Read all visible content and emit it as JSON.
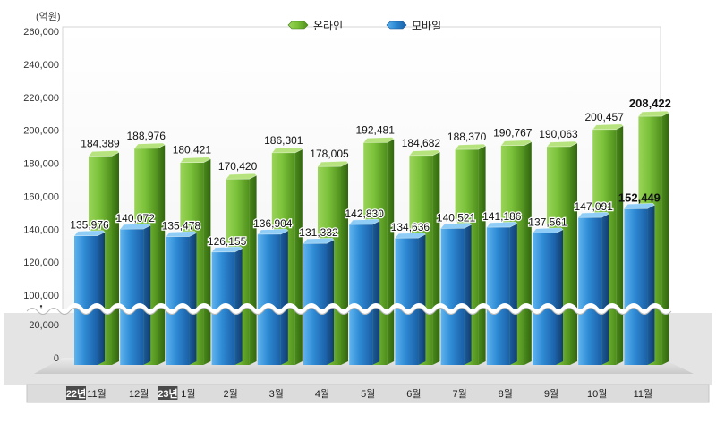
{
  "chart_data": {
    "type": "bar",
    "unit_label": "(억원)",
    "legend": [
      {
        "name": "온라인",
        "color": "#7fc33a"
      },
      {
        "name": "모바일",
        "color": "#2f8fd6"
      }
    ],
    "year_tags": [
      "22년",
      "23년"
    ],
    "categories": [
      "11월",
      "12월",
      "1월",
      "2월",
      "3월",
      "4월",
      "5월",
      "6월",
      "7월",
      "8월",
      "9월",
      "10월",
      "11월"
    ],
    "series": [
      {
        "name": "온라인",
        "values": [
          184389,
          188976,
          180421,
          170420,
          186301,
          178005,
          192481,
          184682,
          188370,
          190767,
          190063,
          200457,
          208422
        ]
      },
      {
        "name": "모바일",
        "values": [
          135976,
          140072,
          135478,
          126155,
          136904,
          131332,
          142830,
          134636,
          140521,
          141186,
          137561,
          147091,
          152449
        ]
      }
    ],
    "value_labels": {
      "온라인": [
        "184,389",
        "188,976",
        "180,421",
        "170,420",
        "186,301",
        "178,005",
        "192,481",
        "184,682",
        "188,370",
        "190,767",
        "190,063",
        "200,457",
        "208,422"
      ],
      "모바일": [
        "135,976",
        "140,072",
        "135,478",
        "126,155",
        "136,904",
        "131,332",
        "142,830",
        "134,636",
        "140,521",
        "141,186",
        "137,561",
        "147,091",
        "152,449"
      ]
    },
    "y_ticks": [
      "260,000",
      "240,000",
      "220,000",
      "200,000",
      "180,000",
      "160,000",
      "140,000",
      "120,000",
      "100,000",
      "20,000",
      "0"
    ],
    "y_tick_values": [
      260000,
      240000,
      220000,
      200000,
      180000,
      160000,
      140000,
      120000,
      100000,
      20000,
      0
    ],
    "axis_break": {
      "from": 20000,
      "to": 100000
    },
    "ylim": [
      0,
      260000
    ],
    "highlight_last": true,
    "grid": false
  }
}
